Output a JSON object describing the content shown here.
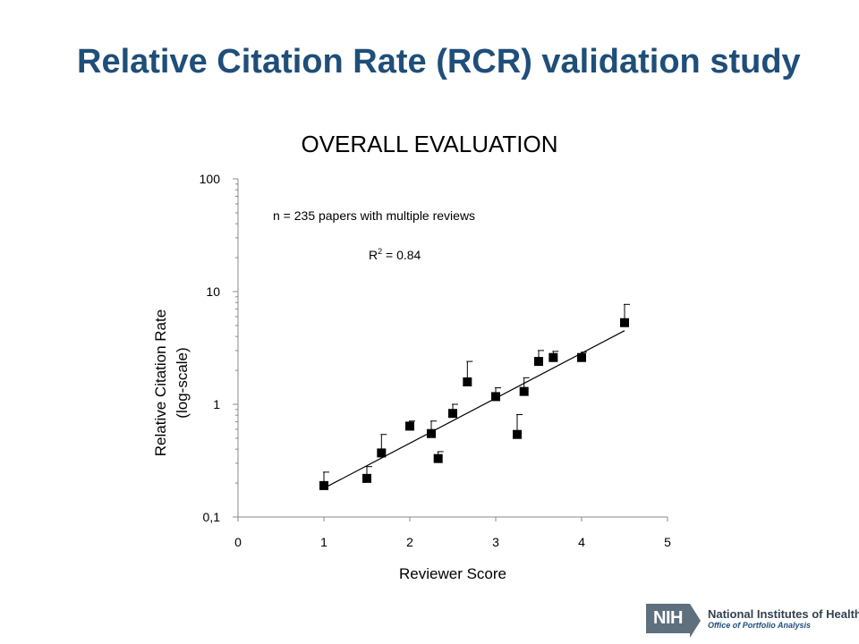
{
  "slide": {
    "title": "Relative Citation Rate (RCR) validation study"
  },
  "footer": {
    "logo_badge": "NIH",
    "org_name": "National Institutes of Health",
    "office": "Office of Portfolio Analysis"
  },
  "chart_data": {
    "type": "scatter",
    "title": "OVERALL EVALUATION",
    "xlabel": "Reviewer Score",
    "ylabel_line1": "Relative Citation Rate",
    "ylabel_line2": "(log-scale)",
    "xlim": [
      0,
      5
    ],
    "ylim": [
      0.1,
      100
    ],
    "y_scale": "log",
    "x_ticks": [
      "0",
      "1",
      "2",
      "3",
      "4",
      "5"
    ],
    "y_ticks": [
      "0,1",
      "1",
      "10",
      "100"
    ],
    "annotations": {
      "n": "n = 235 papers with multiple reviews",
      "r2_prefix": "R",
      "r2_sup": "2",
      "r2_value": " = 0.84"
    },
    "points": [
      {
        "x": 1.0,
        "y": 0.19,
        "err_upper": 0.25
      },
      {
        "x": 1.5,
        "y": 0.22,
        "err_upper": 0.28
      },
      {
        "x": 1.67,
        "y": 0.37,
        "err_upper": 0.54
      },
      {
        "x": 2.0,
        "y": 0.64,
        "err_upper": 0.71
      },
      {
        "x": 2.25,
        "y": 0.55,
        "err_upper": 0.71
      },
      {
        "x": 2.33,
        "y": 0.33,
        "err_upper": 0.38
      },
      {
        "x": 2.5,
        "y": 0.83,
        "err_upper": 1.0
      },
      {
        "x": 2.67,
        "y": 1.58,
        "err_upper": 2.4
      },
      {
        "x": 3.0,
        "y": 1.17,
        "err_upper": 1.4
      },
      {
        "x": 3.25,
        "y": 0.54,
        "err_upper": 0.81
      },
      {
        "x": 3.33,
        "y": 1.3,
        "err_upper": 1.72
      },
      {
        "x": 3.5,
        "y": 2.4,
        "err_upper": 3.0
      },
      {
        "x": 3.67,
        "y": 2.6,
        "err_upper": 2.95
      },
      {
        "x": 4.0,
        "y": 2.6,
        "err_upper": 2.9
      },
      {
        "x": 4.5,
        "y": 5.3,
        "err_upper": 7.7
      }
    ],
    "trendline": {
      "x": [
        1.0,
        4.5
      ],
      "y": [
        0.18,
        4.5
      ]
    },
    "grid": false,
    "legend": false
  }
}
